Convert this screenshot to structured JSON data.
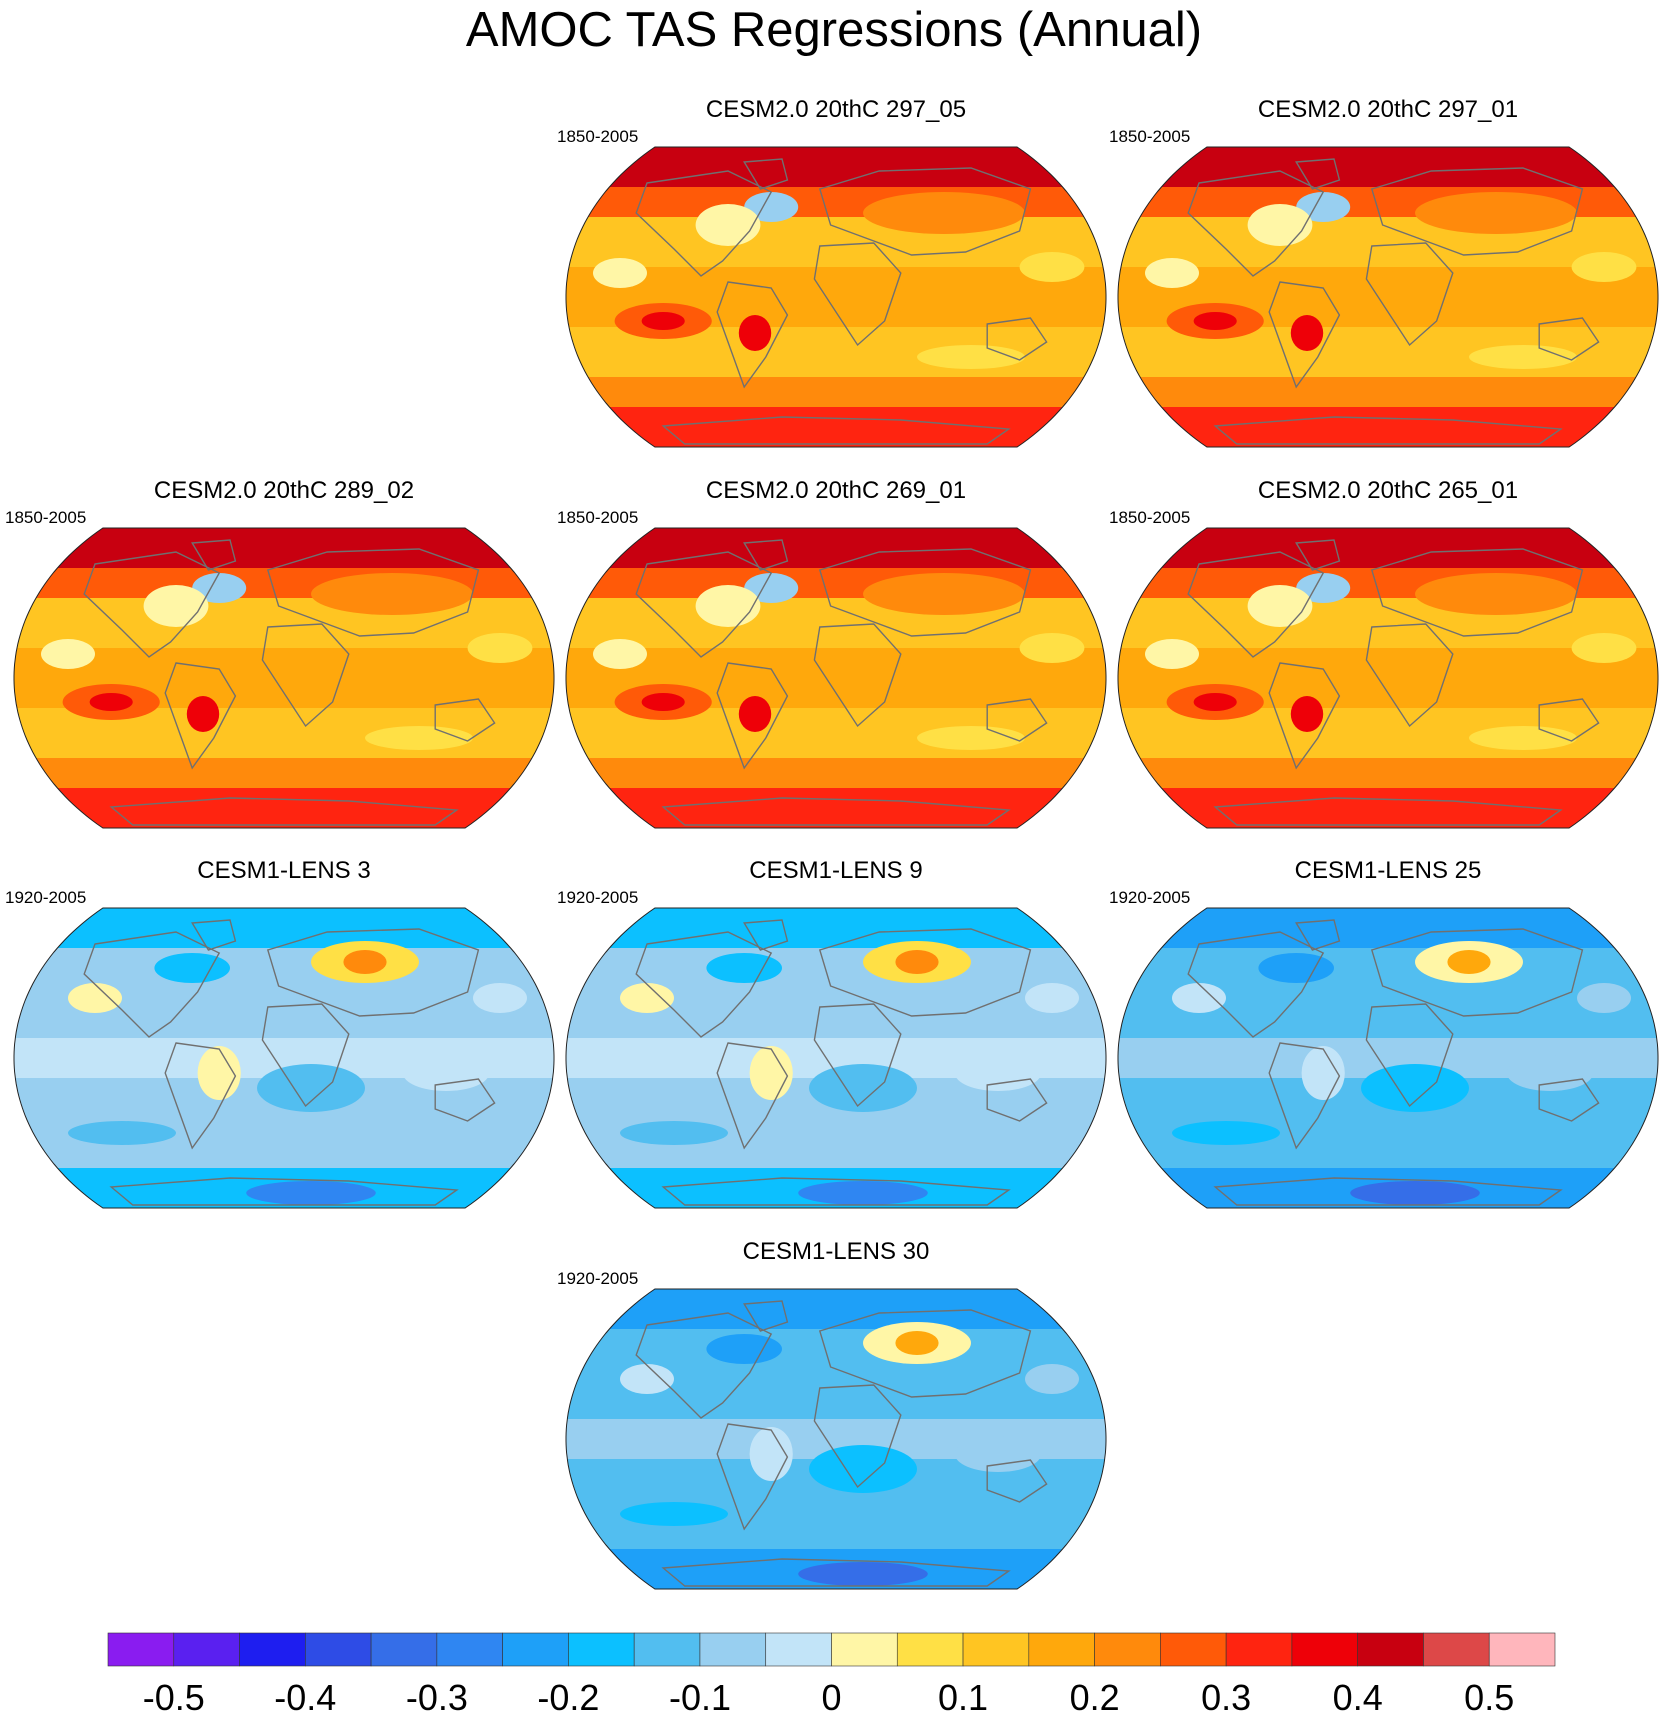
{
  "figure": {
    "title": "AMOC TAS Regressions (Annual)"
  },
  "colors": {
    "levels": [
      "#8a1cf0",
      "#5a20f0",
      "#1e1ef0",
      "#2e4ce6",
      "#356ee8",
      "#2f86f2",
      "#1ea0f8",
      "#0cc0ff",
      "#52bef0",
      "#98cff0",
      "#c2e4f8",
      "#fff6a6",
      "#ffe045",
      "#ffc522",
      "#ffa80c",
      "#ff8a0c",
      "#ff5a08",
      "#ff2410",
      "#ee0008",
      "#c80010",
      "#dd4848",
      "#ffb6bc"
    ],
    "coastline": "#707070",
    "map_outline": "#222222"
  },
  "chart_data": [
    {
      "type": "heatmap",
      "projection": "Robinson",
      "title": "CESM2.0 20thC 297_05",
      "period": "1850-2005",
      "base_level": 13,
      "pattern": "warm"
    },
    {
      "type": "heatmap",
      "projection": "Robinson",
      "title": "CESM2.0 20thC 297_01",
      "period": "1850-2005",
      "base_level": 13,
      "pattern": "warm"
    },
    {
      "type": "heatmap",
      "projection": "Robinson",
      "title": "CESM2.0 20thC 289_02",
      "period": "1850-2005",
      "base_level": 13,
      "pattern": "warm"
    },
    {
      "type": "heatmap",
      "projection": "Robinson",
      "title": "CESM2.0 20thC 269_01",
      "period": "1850-2005",
      "base_level": 13,
      "pattern": "warm"
    },
    {
      "type": "heatmap",
      "projection": "Robinson",
      "title": "CESM2.0 20thC 265_01",
      "period": "1850-2005",
      "base_level": 13,
      "pattern": "warm"
    },
    {
      "type": "heatmap",
      "projection": "Robinson",
      "title": "CESM1-LENS 3",
      "period": "1920-2005",
      "base_level": 9,
      "pattern": "cool"
    },
    {
      "type": "heatmap",
      "projection": "Robinson",
      "title": "CESM1-LENS 9",
      "period": "1920-2005",
      "base_level": 9,
      "pattern": "cool"
    },
    {
      "type": "heatmap",
      "projection": "Robinson",
      "title": "CESM1-LENS 25",
      "period": "1920-2005",
      "base_level": 8,
      "pattern": "cool"
    },
    {
      "type": "heatmap",
      "projection": "Robinson",
      "title": "CESM1-LENS 30",
      "period": "1920-2005",
      "base_level": 8,
      "pattern": "cool"
    }
  ],
  "colorbar": {
    "bounds": [
      -0.55,
      0.55
    ],
    "step": 0.05,
    "tick_values": [
      -0.5,
      -0.4,
      -0.3,
      -0.2,
      -0.1,
      0,
      0.1,
      0.2,
      0.3,
      0.4,
      0.5
    ],
    "tick_labels": [
      "-0.5",
      "-0.4",
      "-0.3",
      "-0.2",
      "-0.1",
      "0",
      "0.1",
      "0.2",
      "0.3",
      "0.4",
      "0.5"
    ]
  }
}
